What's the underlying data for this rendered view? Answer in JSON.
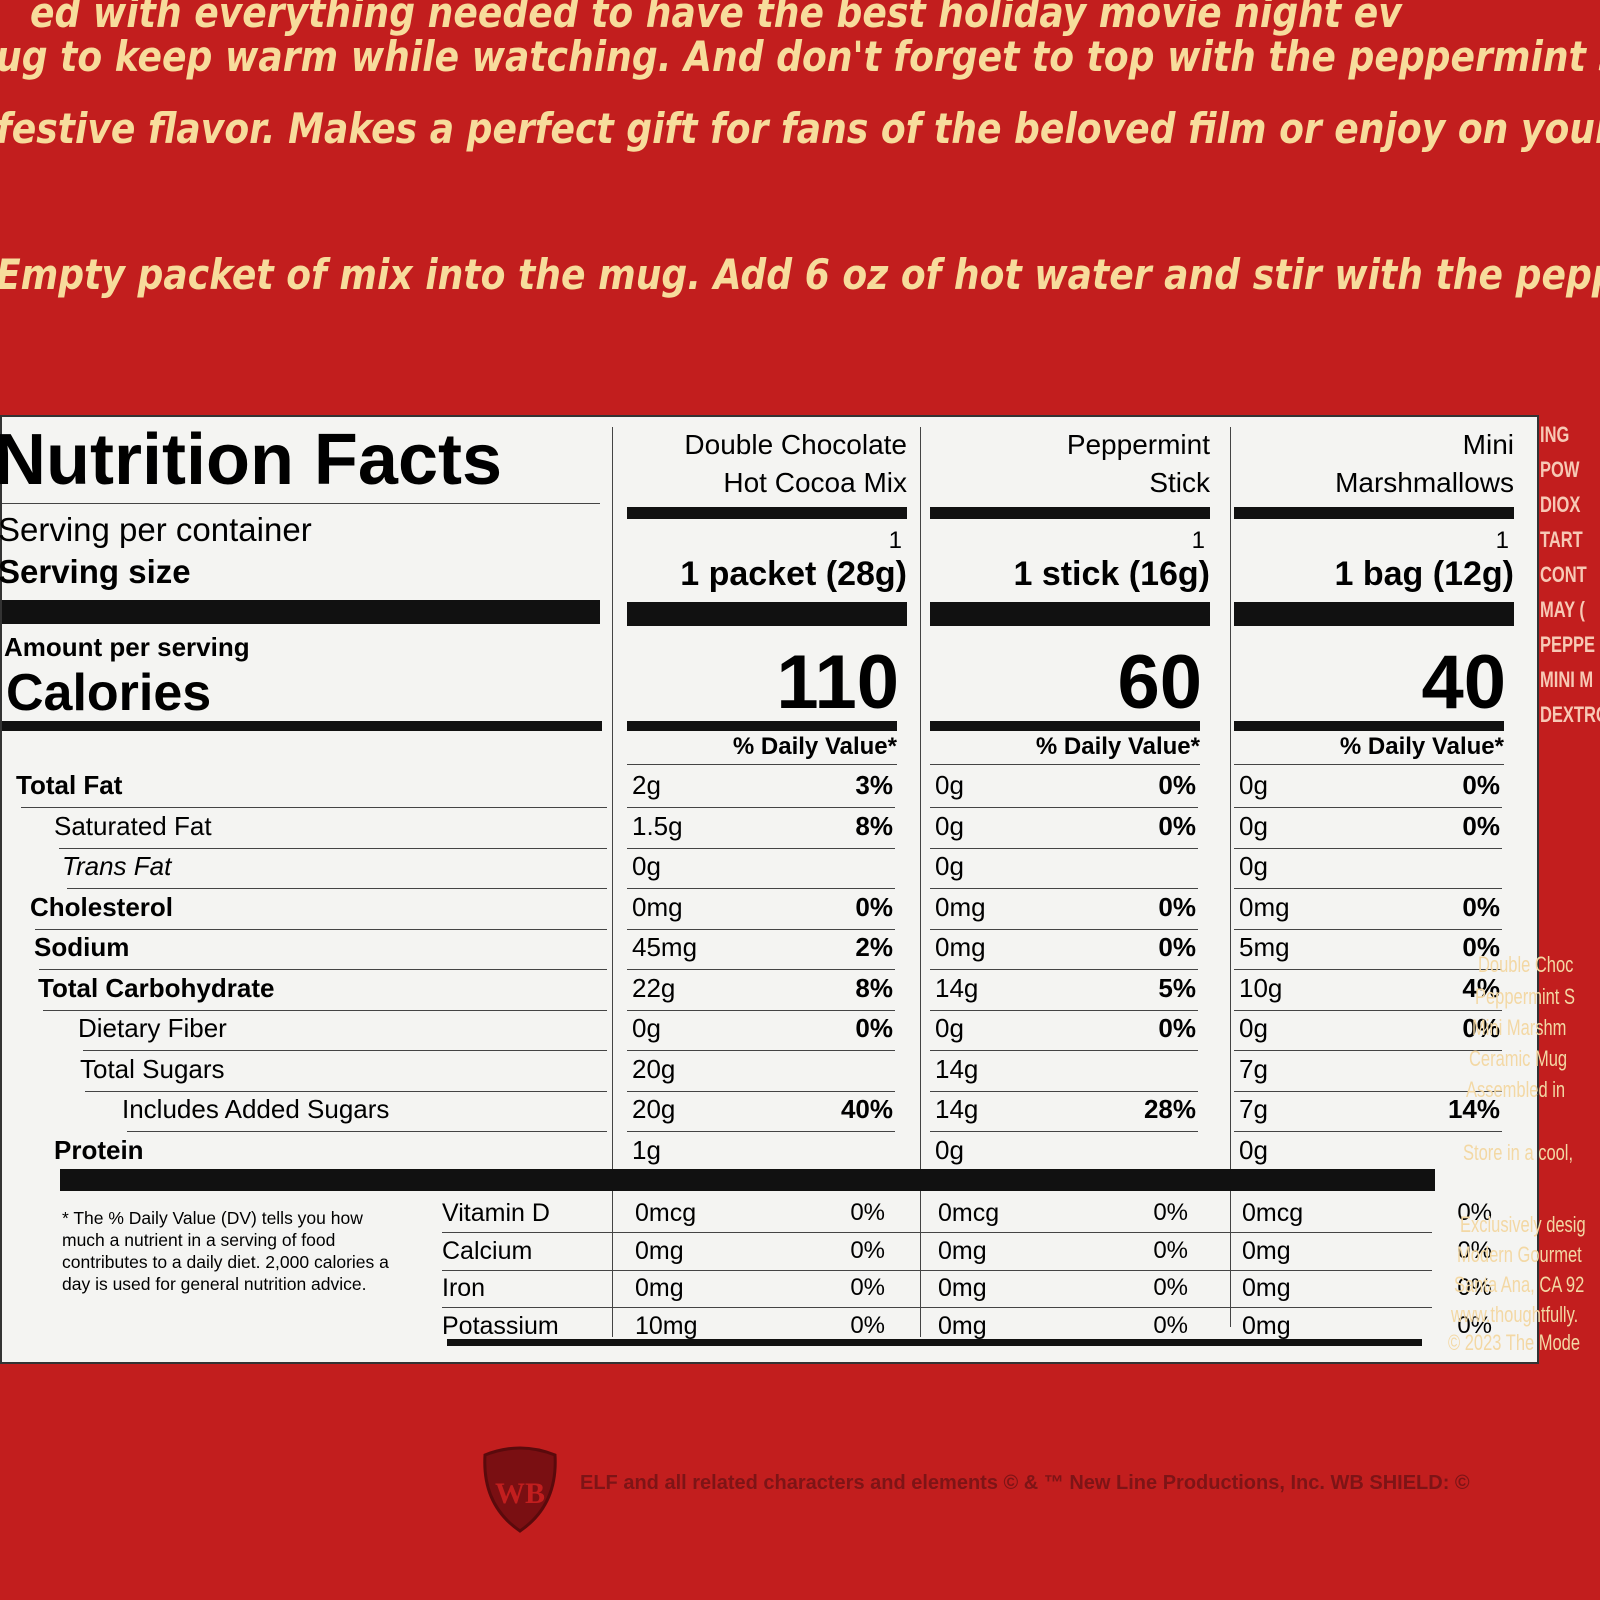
{
  "intro_lines": [
    "ed with everything needed to have the best holiday movie night ev",
    "ug to keep warm while watching. And don't forget to top with the peppermint s",
    "festive flavor. Makes a perfect gift for fans of the beloved film or enjoy on your"
  ],
  "directions": "Empty packet of mix into the mug. Add 6 oz of hot water and stir with the pepperi",
  "nutrition": {
    "title": "Nutrition Facts",
    "servings_label": "Serving per container",
    "serving_size_label": "Serving size",
    "amount_label": "Amount per serving",
    "calories_label": "Calories",
    "nutrients": [
      "Total Fat",
      "Saturated Fat",
      "Trans Fat",
      "Cholesterol",
      "Sodium",
      "Total Carbohydrate",
      "Dietary Fiber",
      "Total Sugars",
      "Includes Added Sugars",
      "Protein"
    ],
    "vitamins": [
      "Vitamin D",
      "Calcium",
      "Iron",
      "Potassium"
    ],
    "footnote": "* The % Daily Value (DV) tells you how much a nutrient in a serving of food contributes to a daily diet. 2,000 calories a day is used for general nutrition advice.",
    "columns": [
      {
        "name": [
          "Double Chocolate",
          "Hot Cocoa Mix"
        ],
        "servings": "1",
        "serving_size": "1 packet (28g)",
        "calories": "110",
        "dv_header": "% Daily Value*",
        "nutrients": [
          [
            "2g",
            "3%"
          ],
          [
            "1.5g",
            "8%"
          ],
          [
            "0g",
            null
          ],
          [
            "0mg",
            "0%"
          ],
          [
            "45mg",
            "2%"
          ],
          [
            "22g",
            "8%"
          ],
          [
            "0g",
            "0%"
          ],
          [
            "20g",
            null
          ],
          [
            "20g",
            "40%"
          ],
          [
            "1g",
            null
          ]
        ],
        "vitamins": [
          [
            "0mcg",
            "0%"
          ],
          [
            "0mg",
            "0%"
          ],
          [
            "0mg",
            "0%"
          ],
          [
            "10mg",
            "0%"
          ]
        ]
      },
      {
        "name": [
          "Peppermint",
          "Stick"
        ],
        "servings": "1",
        "serving_size": "1 stick (16g)",
        "calories": "60",
        "dv_header": "% Daily Value*",
        "nutrients": [
          [
            "0g",
            "0%"
          ],
          [
            "0g",
            "0%"
          ],
          [
            "0g",
            null
          ],
          [
            "0mg",
            "0%"
          ],
          [
            "0mg",
            "0%"
          ],
          [
            "14g",
            "5%"
          ],
          [
            "0g",
            "0%"
          ],
          [
            "14g",
            null
          ],
          [
            "14g",
            "28%"
          ],
          [
            "0g",
            null
          ]
        ],
        "vitamins": [
          [
            "0mcg",
            "0%"
          ],
          [
            "0mg",
            "0%"
          ],
          [
            "0mg",
            "0%"
          ],
          [
            "0mg",
            "0%"
          ]
        ]
      },
      {
        "name": [
          "Mini",
          "Marshmallows"
        ],
        "servings": "1",
        "serving_size": "1 bag (12g)",
        "calories": "40",
        "dv_header": "% Daily Value*",
        "nutrients": [
          [
            "0g",
            "0%"
          ],
          [
            "0g",
            "0%"
          ],
          [
            "0g",
            null
          ],
          [
            "0mg",
            "0%"
          ],
          [
            "5mg",
            "0%"
          ],
          [
            "10g",
            "4%"
          ],
          [
            "0g",
            "0%"
          ],
          [
            "7g",
            null
          ],
          [
            "7g",
            "14%"
          ],
          [
            "0g",
            null
          ]
        ],
        "vitamins": [
          [
            "0mcg",
            "0%"
          ],
          [
            "0mg",
            "0%"
          ],
          [
            "0mg",
            "0%"
          ],
          [
            "0mg",
            "0%"
          ]
        ]
      }
    ]
  },
  "side_upper": [
    "ING",
    "POW",
    "DIOX",
    "TART",
    "CONT",
    "MAY (",
    "PEPPE",
    "MINI M",
    "DEXTRO"
  ],
  "side_lower": [
    "Double Choc",
    "Peppermint S",
    "Mini Marshm",
    "Ceramic Mug",
    "Assembled in",
    "Store in a cool,",
    "Exclusively desig",
    "Modern Gourmet",
    "Santa Ana, CA 92",
    "www.thoughtfully.",
    "© 2023 The Mode"
  ],
  "copyright": "ELF and all related characters and elements © & ™ New Line Productions, Inc. WB SHIELD: ©"
}
